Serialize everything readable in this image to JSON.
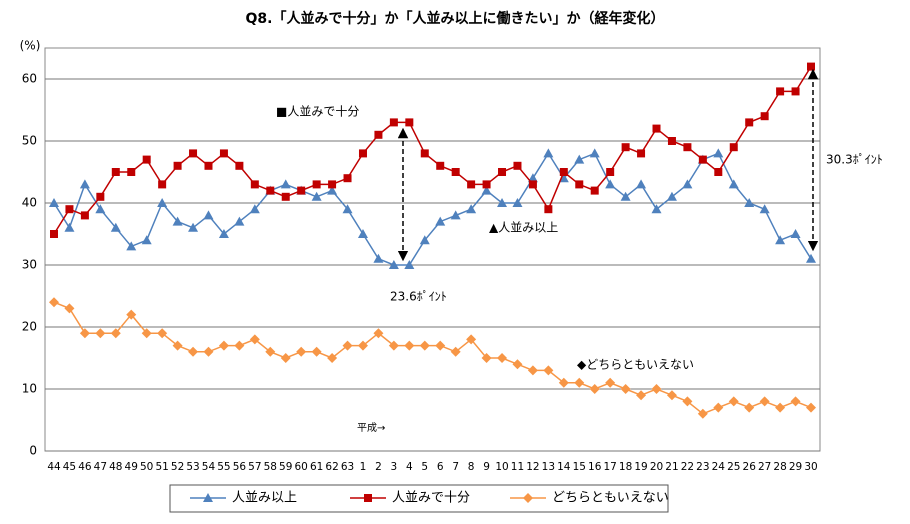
{
  "chart_data": {
    "type": "line",
    "title": "Q8.「人並みで十分」か「人並み以上に働きたい」か（経年変化）",
    "y_label": "(%)",
    "categories": [
      "44",
      "45",
      "46",
      "47",
      "48",
      "49",
      "50",
      "51",
      "52",
      "53",
      "54",
      "55",
      "56",
      "57",
      "58",
      "59",
      "60",
      "61",
      "62",
      "63",
      "1",
      "2",
      "3",
      "4",
      "5",
      "6",
      "7",
      "8",
      "9",
      "10",
      "11",
      "12",
      "13",
      "14",
      "15",
      "16",
      "17",
      "18",
      "19",
      "20",
      "21",
      "22",
      "23",
      "24",
      "25",
      "26",
      "27",
      "28",
      "29",
      "30"
    ],
    "series": [
      {
        "name": "人並み以上",
        "color": "#4f81bd",
        "marker": "triangle",
        "values": [
          40,
          36,
          43,
          39,
          36,
          33,
          34,
          40,
          37,
          36,
          38,
          35,
          37,
          39,
          42,
          43,
          42,
          41,
          42,
          39,
          35,
          31,
          30,
          30,
          34,
          37,
          38,
          39,
          42,
          40,
          40,
          44,
          48,
          44,
          47,
          48,
          43,
          41,
          43,
          39,
          41,
          43,
          47,
          48,
          43,
          40,
          39,
          34,
          35,
          31
        ]
      },
      {
        "name": "人並みで十分",
        "color": "#c00000",
        "marker": "square",
        "values": [
          35,
          39,
          38,
          41,
          45,
          45,
          47,
          43,
          46,
          48,
          46,
          48,
          46,
          43,
          42,
          41,
          42,
          43,
          43,
          44,
          48,
          51,
          53,
          53,
          48,
          46,
          45,
          43,
          43,
          45,
          46,
          43,
          39,
          45,
          43,
          42,
          45,
          49,
          48,
          52,
          50,
          49,
          47,
          45,
          49,
          53,
          54,
          58,
          58,
          62
        ]
      },
      {
        "name": "どちらともいえない",
        "color": "#f79646",
        "marker": "diamond",
        "values": [
          24,
          23,
          19,
          19,
          19,
          22,
          19,
          19,
          17,
          16,
          16,
          17,
          17,
          18,
          16,
          15,
          16,
          16,
          15,
          17,
          17,
          19,
          17,
          17,
          17,
          17,
          16,
          18,
          15,
          15,
          14,
          13,
          13,
          11,
          11,
          10,
          11,
          10,
          9,
          10,
          9,
          8,
          6,
          7,
          8,
          7,
          8,
          7,
          8,
          7
        ]
      }
    ],
    "annotations": [
      "■人並みで十分",
      "▲人並み以上",
      "◆どちらともいえない",
      "平成→",
      "23.6ﾎﾟｲﾝﾄ",
      "30.3ﾎﾟｲﾝﾄ"
    ],
    "ylim": [
      0,
      65
    ],
    "yticks": [
      0,
      10,
      20,
      30,
      40,
      50,
      60
    ],
    "grid": true,
    "legend": "bottom"
  }
}
